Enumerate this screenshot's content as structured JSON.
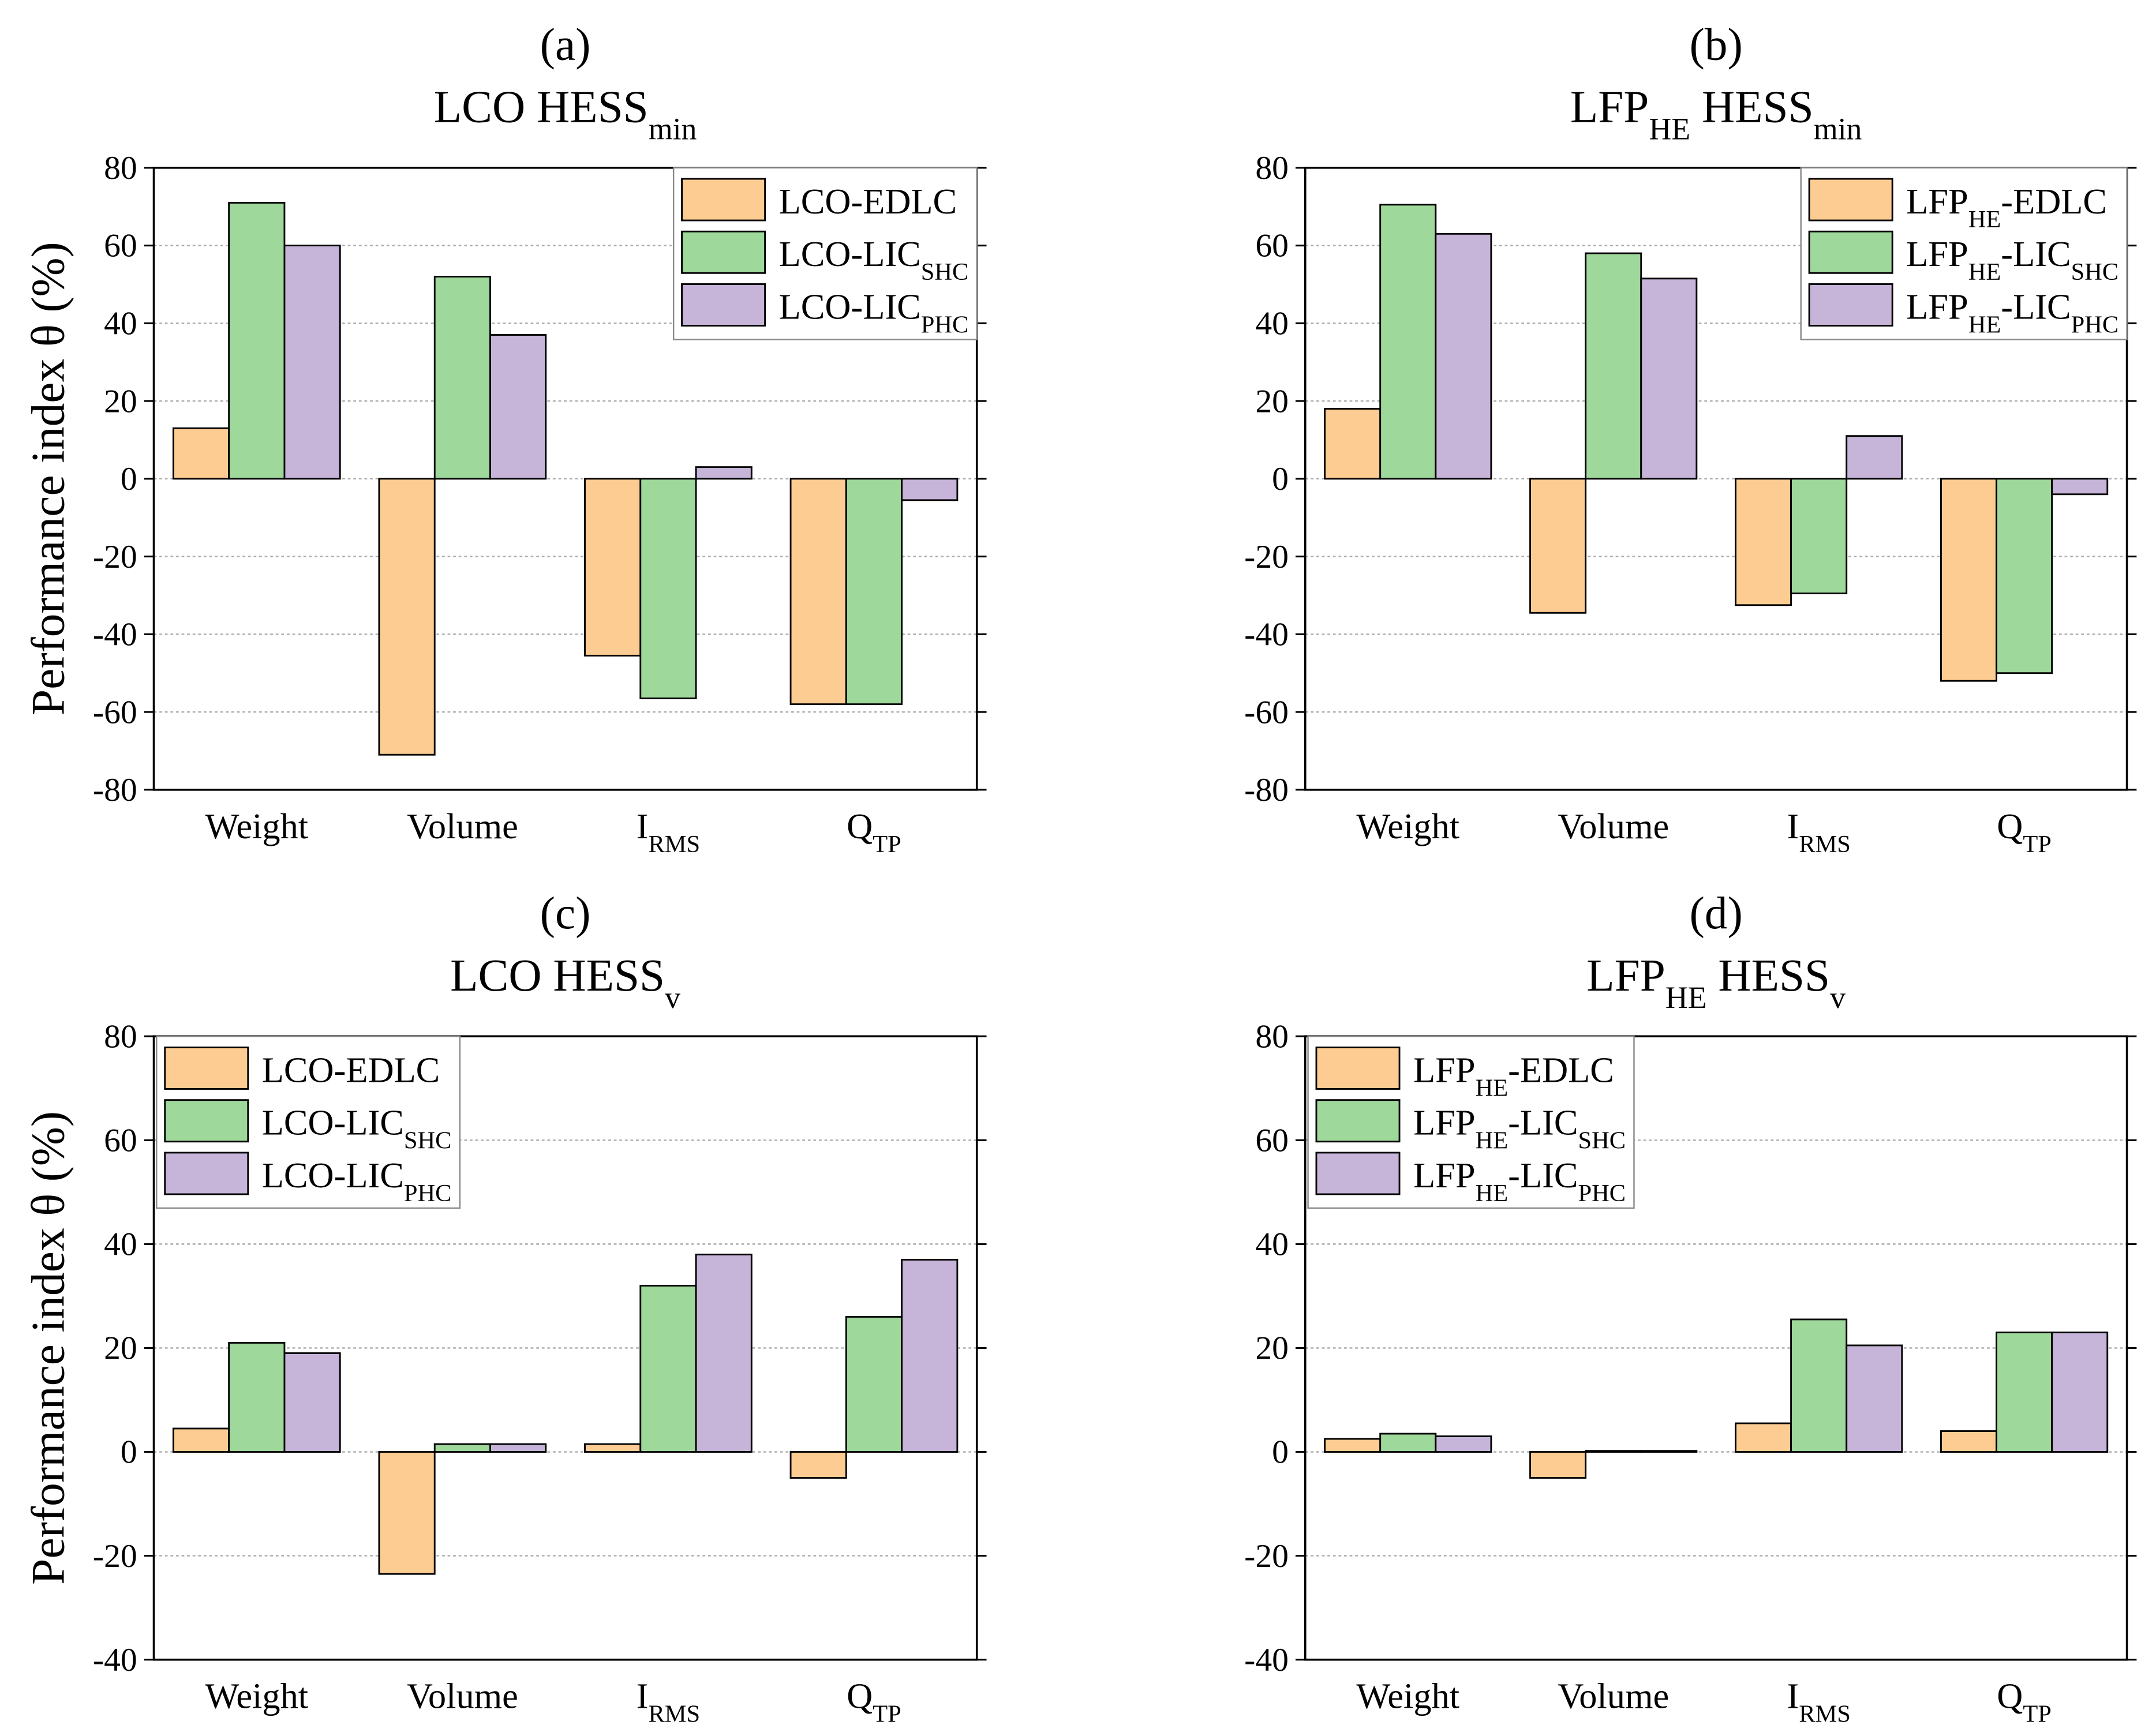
{
  "chart_data": [
    {
      "type": "bar",
      "panel": "(a)",
      "title": [
        "LCO HESS",
        {
          "sub": "min"
        }
      ],
      "ylabel": "Performance index θ (%)",
      "categories": [
        [
          "Weight"
        ],
        [
          "Volume"
        ],
        [
          "I",
          {
            "sub": "RMS"
          }
        ],
        [
          "Q",
          {
            "sub": "TP"
          }
        ]
      ],
      "ylim": [
        -80,
        80
      ],
      "yticks": [
        -80,
        -60,
        -40,
        -20,
        0,
        20,
        40,
        60,
        80
      ],
      "grid": true,
      "legend": "upper right",
      "series": [
        {
          "name": [
            "LCO-EDLC"
          ],
          "color": "#fdcc92",
          "values": [
            13,
            -71,
            -45.5,
            -58
          ]
        },
        {
          "name": [
            "LCO-LIC",
            {
              "sub": "SHC"
            }
          ],
          "color": "#9ed89a",
          "values": [
            71,
            52,
            -56.5,
            -58
          ]
        },
        {
          "name": [
            "LCO-LIC",
            {
              "sub": "PHC"
            }
          ],
          "color": "#c6b4d9",
          "values": [
            60,
            37,
            3,
            -5.5
          ]
        }
      ]
    },
    {
      "type": "bar",
      "panel": "(b)",
      "title": [
        "LFP",
        {
          "sub": "HE"
        },
        " HESS",
        {
          "sub": "min"
        }
      ],
      "categories": [
        [
          "Weight"
        ],
        [
          "Volume"
        ],
        [
          "I",
          {
            "sub": "RMS"
          }
        ],
        [
          "Q",
          {
            "sub": "TP"
          }
        ]
      ],
      "ylim": [
        -80,
        80
      ],
      "yticks": [
        -80,
        -60,
        -40,
        -20,
        0,
        20,
        40,
        60,
        80
      ],
      "grid": true,
      "legend": "upper right",
      "series": [
        {
          "name": [
            "LFP",
            {
              "sub": "HE"
            },
            "-EDLC"
          ],
          "color": "#fdcc92",
          "values": [
            18,
            -34.5,
            -32.5,
            -52
          ]
        },
        {
          "name": [
            "LFP",
            {
              "sub": "HE"
            },
            "-LIC",
            {
              "sub": "SHC"
            }
          ],
          "color": "#9ed89a",
          "values": [
            70.5,
            58,
            -29.5,
            -50
          ]
        },
        {
          "name": [
            "LFP",
            {
              "sub": "HE"
            },
            "-LIC",
            {
              "sub": "PHC"
            }
          ],
          "color": "#c6b4d9",
          "values": [
            63,
            51.5,
            11,
            -4
          ]
        }
      ]
    },
    {
      "type": "bar",
      "panel": "(c)",
      "title": [
        "LCO HESS",
        {
          "sub": "v"
        }
      ],
      "ylabel": "Performance index θ (%)",
      "categories": [
        [
          "Weight"
        ],
        [
          "Volume"
        ],
        [
          "I",
          {
            "sub": "RMS"
          }
        ],
        [
          "Q",
          {
            "sub": "TP"
          }
        ]
      ],
      "ylim": [
        -40,
        80
      ],
      "yticks": [
        -40,
        -20,
        0,
        20,
        40,
        60,
        80
      ],
      "grid": true,
      "legend": "upper left",
      "series": [
        {
          "name": [
            "LCO-EDLC"
          ],
          "color": "#fdcc92",
          "values": [
            4.5,
            -23.5,
            1.5,
            -5
          ]
        },
        {
          "name": [
            "LCO-LIC",
            {
              "sub": "SHC"
            }
          ],
          "color": "#9ed89a",
          "values": [
            21,
            1.5,
            32,
            26
          ]
        },
        {
          "name": [
            "LCO-LIC",
            {
              "sub": "PHC"
            }
          ],
          "color": "#c6b4d9",
          "values": [
            19,
            1.5,
            38,
            37
          ]
        }
      ]
    },
    {
      "type": "bar",
      "panel": "(d)",
      "title": [
        "LFP",
        {
          "sub": "HE"
        },
        " HESS",
        {
          "sub": "v"
        }
      ],
      "categories": [
        [
          "Weight"
        ],
        [
          "Volume"
        ],
        [
          "I",
          {
            "sub": "RMS"
          }
        ],
        [
          "Q",
          {
            "sub": "TP"
          }
        ]
      ],
      "ylim": [
        -40,
        80
      ],
      "yticks": [
        -40,
        -20,
        0,
        20,
        40,
        60,
        80
      ],
      "grid": true,
      "legend": "upper left",
      "series": [
        {
          "name": [
            "LFP",
            {
              "sub": "HE"
            },
            "-EDLC"
          ],
          "color": "#fdcc92",
          "values": [
            2.5,
            -5,
            5.5,
            4
          ]
        },
        {
          "name": [
            "LFP",
            {
              "sub": "HE"
            },
            "-LIC",
            {
              "sub": "SHC"
            }
          ],
          "color": "#9ed89a",
          "values": [
            3.5,
            0.2,
            25.5,
            23
          ]
        },
        {
          "name": [
            "LFP",
            {
              "sub": "HE"
            },
            "-LIC",
            {
              "sub": "PHC"
            }
          ],
          "color": "#c6b4d9",
          "values": [
            3,
            0.2,
            20.5,
            23
          ]
        }
      ]
    }
  ]
}
